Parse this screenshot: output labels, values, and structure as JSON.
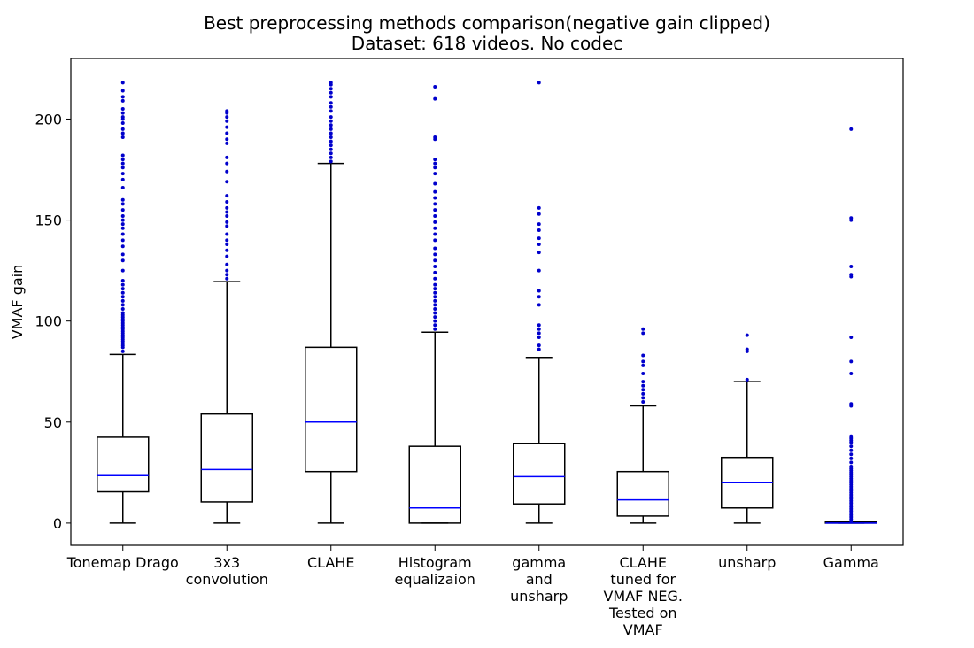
{
  "chart_data": {
    "type": "box",
    "title": [
      "Best preprocessing methods comparison(negative gain clipped)",
      "Dataset: 618 videos. No codec"
    ],
    "ylabel": "VMAF gain",
    "xlabel": "",
    "ylim": [
      -11,
      230
    ],
    "yticks": [
      0,
      50,
      100,
      150,
      200
    ],
    "grid": false,
    "colors": {
      "box": "#000000",
      "median": "#0000ff",
      "outlier": "#0000cc"
    },
    "categories": [
      [
        "Tonemap Drago"
      ],
      [
        "3x3",
        "convolution"
      ],
      [
        "CLAHE"
      ],
      [
        "Histogram",
        "equalizaion"
      ],
      [
        "gamma",
        "and",
        "unsharp"
      ],
      [
        "CLAHE",
        "tuned for",
        "VMAF NEG.",
        "Tested on",
        "VMAF"
      ],
      [
        "unsharp"
      ],
      [
        "Gamma"
      ]
    ],
    "boxes": [
      {
        "whislo": 0,
        "q1": 15.5,
        "med": 23.5,
        "q3": 42.5,
        "whishi": 83.5,
        "fliers": [
          85,
          87,
          88,
          89,
          90,
          91,
          92,
          93,
          94,
          95,
          96,
          97,
          98,
          99,
          100,
          101,
          102,
          103,
          104,
          106,
          108,
          110,
          112,
          114,
          116,
          118,
          120,
          125,
          130,
          133,
          137,
          140,
          143,
          146,
          148,
          150,
          152,
          155,
          158,
          160,
          166,
          170,
          173,
          176,
          178,
          180,
          182,
          191,
          193,
          195,
          198,
          200,
          201,
          203,
          205,
          209,
          211,
          214,
          218
        ]
      },
      {
        "whislo": 0,
        "q1": 10.5,
        "med": 26.5,
        "q3": 54,
        "whishi": 119.5,
        "fliers": [
          121,
          123,
          125,
          128,
          132,
          135,
          138,
          140,
          143,
          147,
          149,
          152,
          154,
          156,
          159,
          162,
          169,
          174,
          178,
          181,
          188,
          190,
          193,
          196,
          199,
          201,
          203,
          204
        ]
      },
      {
        "whislo": 0,
        "q1": 25.5,
        "med": 50,
        "q3": 87,
        "whishi": 178,
        "fliers": [
          179,
          181,
          183,
          185,
          187,
          189,
          191,
          193,
          195,
          197,
          199,
          201,
          204,
          206,
          208,
          211,
          213,
          215,
          217,
          218
        ]
      },
      {
        "whislo": 0,
        "q1": 0,
        "med": 7.5,
        "q3": 38,
        "whishi": 94.5,
        "fliers": [
          96,
          98,
          100,
          102,
          104,
          106,
          108,
          110,
          112,
          114,
          116,
          118,
          121,
          124,
          127,
          130,
          133,
          136,
          140,
          143,
          146,
          149,
          152,
          155,
          158,
          161,
          164,
          168,
          173,
          176,
          178,
          180,
          190,
          191,
          210,
          216
        ]
      },
      {
        "whislo": 0,
        "q1": 9.5,
        "med": 23,
        "q3": 39.5,
        "whishi": 82,
        "fliers": [
          86,
          88,
          92,
          94,
          96,
          98,
          108,
          112,
          115,
          125,
          134,
          138,
          141,
          145,
          148,
          153,
          156,
          218
        ]
      },
      {
        "whislo": 0,
        "q1": 3.5,
        "med": 11.5,
        "q3": 25.5,
        "whishi": 58,
        "fliers": [
          60,
          62,
          64,
          66,
          68,
          70,
          74,
          78,
          80,
          83,
          94,
          96
        ]
      },
      {
        "whislo": 0,
        "q1": 7.5,
        "med": 20,
        "q3": 32.5,
        "whishi": 70,
        "fliers": [
          71,
          85,
          86,
          93
        ]
      },
      {
        "whislo": 0,
        "q1": 0,
        "med": 0,
        "q3": 0.5,
        "whishi": 0.5,
        "fliers": [
          1,
          2,
          3,
          4,
          5,
          6,
          7,
          8,
          9,
          10,
          11,
          12,
          13,
          14,
          15,
          16,
          17,
          18,
          19,
          20,
          21,
          22,
          23,
          24,
          25,
          26,
          27,
          28,
          30,
          32,
          34,
          36,
          38,
          40,
          41,
          42,
          43,
          58,
          59,
          74,
          80,
          92,
          122,
          123,
          127,
          150,
          151,
          195
        ]
      }
    ]
  }
}
